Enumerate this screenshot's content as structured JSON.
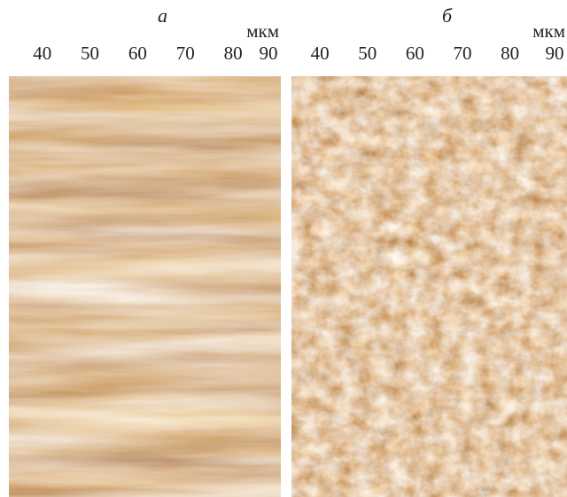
{
  "chart_data": [
    {
      "type": "image",
      "title": "а",
      "xlabel": "мкм",
      "xlim": [
        33,
        90
      ],
      "xticks": [
        40,
        50,
        60,
        70,
        80,
        90
      ]
    },
    {
      "type": "image",
      "title": "б",
      "xlabel": "мкм",
      "xlim": [
        34,
        92
      ],
      "xticks": [
        40,
        50,
        60,
        70,
        80,
        90
      ]
    }
  ]
}
